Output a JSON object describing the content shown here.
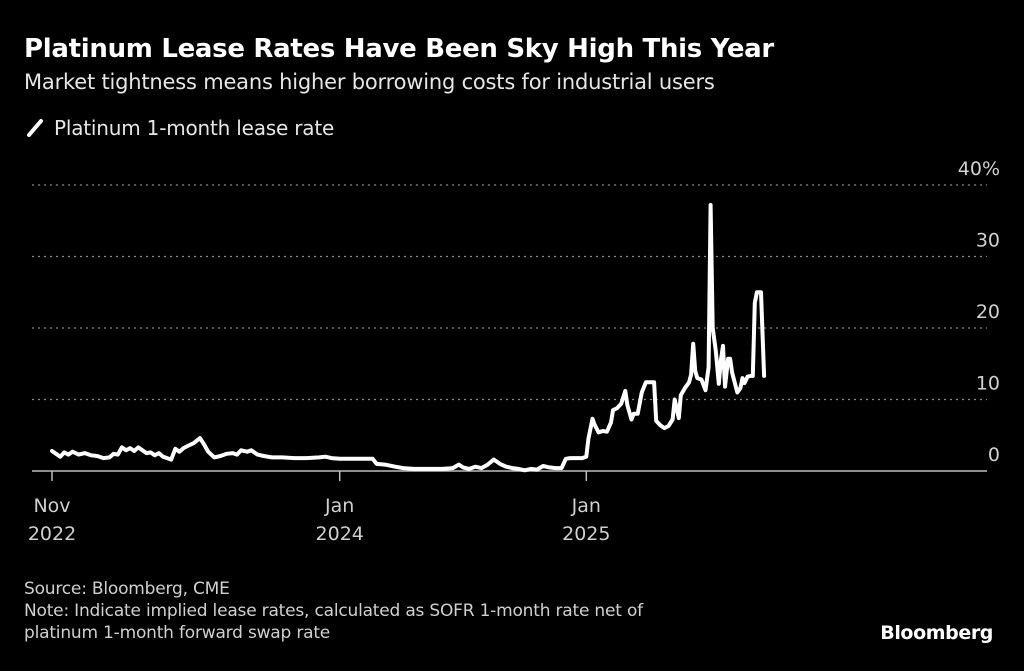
{
  "header": {
    "title": "Platinum Lease Rates Have Been Sky High This Year",
    "subtitle": "Market tightness means higher borrowing costs for industrial users"
  },
  "legend": [
    {
      "label": "Platinum 1-month lease rate",
      "icon": "line-slash-icon",
      "color": "#ffffff"
    }
  ],
  "footer": {
    "source": "Source: Bloomberg, CME",
    "note_line1": "Note: Indicate implied lease rates, calculated as SOFR 1-month rate net of",
    "note_line2": "platinum 1-month forward swap rate",
    "brand": "Bloomberg"
  },
  "colors": {
    "background": "#000000",
    "line": "#ffffff",
    "grid": "#8a8a8a",
    "axis": "#bdbdbd",
    "text_muted": "#d0d0d0"
  },
  "chart_data": {
    "type": "line",
    "title": "Platinum Lease Rates Have Been Sky High This Year",
    "subtitle": "Market tightness means higher borrowing costs for industrial users",
    "xlabel": "",
    "ylabel": "",
    "y_unit": "%",
    "ylim": [
      0,
      40
    ],
    "y_ticks": [
      {
        "value": 40,
        "label": "40%"
      },
      {
        "value": 30,
        "label": "30"
      },
      {
        "value": 20,
        "label": "20"
      },
      {
        "value": 10,
        "label": "10"
      },
      {
        "value": 0,
        "label": "0"
      }
    ],
    "xlim_months": [
      -0.3,
      33.8
    ],
    "x_ticks": [
      {
        "month": 0,
        "line1": "Nov",
        "line2": "2022"
      },
      {
        "month": 14,
        "line1": "Jan",
        "line2": "2024"
      },
      {
        "month": 26,
        "line1": "Jan",
        "line2": "2025"
      }
    ],
    "grid": true,
    "grid_style": "dotted",
    "legend_position": "top-left",
    "x_unit_note": "x = months since Nov 1, 2022",
    "series": [
      {
        "name": "Platinum 1-month lease rate",
        "color": "#ffffff",
        "points": [
          [
            0.0,
            2.8
          ],
          [
            0.2,
            2.4
          ],
          [
            0.4,
            2.0
          ],
          [
            0.6,
            2.6
          ],
          [
            0.8,
            2.3
          ],
          [
            1.0,
            2.7
          ],
          [
            1.3,
            2.3
          ],
          [
            1.6,
            2.5
          ],
          [
            1.9,
            2.2
          ],
          [
            2.2,
            2.1
          ],
          [
            2.5,
            1.8
          ],
          [
            2.8,
            1.9
          ],
          [
            3.0,
            2.4
          ],
          [
            3.2,
            2.3
          ],
          [
            3.4,
            3.3
          ],
          [
            3.6,
            2.9
          ],
          [
            3.8,
            3.2
          ],
          [
            4.0,
            2.8
          ],
          [
            4.2,
            3.3
          ],
          [
            4.4,
            2.9
          ],
          [
            4.6,
            2.5
          ],
          [
            4.8,
            2.6
          ],
          [
            5.0,
            2.2
          ],
          [
            5.2,
            2.5
          ],
          [
            5.4,
            2.0
          ],
          [
            5.6,
            1.8
          ],
          [
            5.8,
            1.6
          ],
          [
            6.0,
            3.1
          ],
          [
            6.2,
            2.7
          ],
          [
            6.4,
            3.2
          ],
          [
            6.6,
            3.5
          ],
          [
            6.9,
            3.9
          ],
          [
            7.2,
            4.6
          ],
          [
            7.4,
            3.7
          ],
          [
            7.6,
            2.7
          ],
          [
            7.9,
            1.9
          ],
          [
            8.2,
            2.1
          ],
          [
            8.5,
            2.4
          ],
          [
            8.8,
            2.5
          ],
          [
            9.0,
            2.3
          ],
          [
            9.2,
            2.9
          ],
          [
            9.5,
            2.7
          ],
          [
            9.7,
            2.9
          ],
          [
            10.0,
            2.3
          ],
          [
            10.3,
            2.1
          ],
          [
            10.7,
            1.9
          ],
          [
            11.2,
            1.9
          ],
          [
            11.8,
            1.8
          ],
          [
            12.4,
            1.8
          ],
          [
            13.0,
            1.9
          ],
          [
            13.3,
            2.0
          ],
          [
            13.6,
            1.8
          ],
          [
            14.0,
            1.7
          ],
          [
            14.6,
            1.7
          ],
          [
            15.2,
            1.7
          ],
          [
            15.6,
            1.7
          ],
          [
            15.8,
            1.0
          ],
          [
            16.2,
            0.9
          ],
          [
            16.7,
            0.6
          ],
          [
            17.1,
            0.4
          ],
          [
            17.6,
            0.3
          ],
          [
            18.3,
            0.3
          ],
          [
            19.0,
            0.3
          ],
          [
            19.5,
            0.4
          ],
          [
            19.8,
            0.9
          ],
          [
            20.0,
            0.5
          ],
          [
            20.3,
            0.3
          ],
          [
            20.6,
            0.6
          ],
          [
            20.9,
            0.4
          ],
          [
            21.2,
            0.9
          ],
          [
            21.5,
            1.6
          ],
          [
            21.8,
            1.0
          ],
          [
            22.1,
            0.6
          ],
          [
            22.4,
            0.4
          ],
          [
            22.7,
            0.3
          ],
          [
            23.0,
            0.1
          ],
          [
            23.3,
            0.3
          ],
          [
            23.6,
            0.2
          ],
          [
            23.9,
            0.7
          ],
          [
            24.2,
            0.5
          ],
          [
            24.5,
            0.4
          ],
          [
            24.8,
            0.4
          ],
          [
            25.0,
            1.7
          ],
          [
            25.2,
            1.8
          ],
          [
            25.6,
            1.8
          ],
          [
            25.8,
            1.8
          ],
          [
            26.0,
            2.0
          ],
          [
            26.1,
            4.5
          ],
          [
            26.3,
            7.3
          ],
          [
            26.4,
            6.5
          ],
          [
            26.6,
            5.4
          ],
          [
            26.8,
            5.6
          ],
          [
            27.0,
            5.5
          ],
          [
            27.2,
            6.8
          ],
          [
            27.3,
            8.5
          ],
          [
            27.5,
            8.8
          ],
          [
            27.7,
            9.4
          ],
          [
            27.9,
            11.2
          ],
          [
            28.0,
            9.2
          ],
          [
            28.2,
            7.2
          ],
          [
            28.3,
            8.0
          ],
          [
            28.5,
            8.0
          ],
          [
            28.7,
            11.0
          ],
          [
            28.9,
            12.4
          ],
          [
            29.1,
            12.4
          ],
          [
            29.3,
            12.4
          ],
          [
            29.4,
            7.0
          ],
          [
            29.6,
            6.4
          ],
          [
            29.8,
            6.0
          ],
          [
            30.0,
            6.3
          ],
          [
            30.2,
            7.2
          ],
          [
            30.3,
            10.0
          ],
          [
            30.5,
            7.4
          ],
          [
            30.6,
            10.6
          ],
          [
            30.8,
            11.6
          ],
          [
            31.0,
            12.4
          ],
          [
            31.1,
            13.5
          ],
          [
            31.2,
            17.8
          ],
          [
            31.3,
            14.0
          ],
          [
            31.4,
            13.0
          ],
          [
            31.6,
            12.8
          ],
          [
            31.8,
            11.3
          ],
          [
            31.95,
            14.5
          ],
          [
            32.05,
            37.2
          ],
          [
            32.15,
            20.0
          ],
          [
            32.3,
            16.8
          ],
          [
            32.45,
            12.2
          ],
          [
            32.55,
            15.5
          ],
          [
            32.65,
            17.5
          ],
          [
            32.75,
            11.8
          ],
          [
            32.9,
            15.7
          ],
          [
            33.0,
            15.7
          ],
          [
            33.1,
            13.7
          ],
          [
            33.2,
            12.6
          ],
          [
            33.35,
            11.0
          ],
          [
            33.5,
            11.6
          ],
          [
            33.6,
            13.0
          ],
          [
            33.7,
            12.3
          ],
          [
            33.85,
            13.2
          ],
          [
            34.0,
            13.3
          ],
          [
            34.1,
            13.3
          ],
          [
            34.2,
            23.5
          ],
          [
            34.3,
            25.0
          ],
          [
            34.5,
            25.0
          ],
          [
            34.65,
            13.3
          ]
        ]
      }
    ]
  }
}
